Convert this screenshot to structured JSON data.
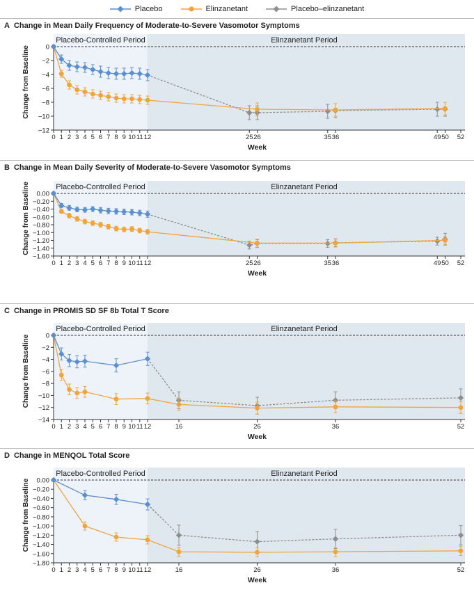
{
  "legend": {
    "items": [
      {
        "label": "Placebo",
        "color": "#5b8fcf"
      },
      {
        "label": "Elinzanetant",
        "color": "#efa43c"
      },
      {
        "label": "Placebo–elinzanetant",
        "color": "#8e8e8e"
      }
    ]
  },
  "chart_data": [
    {
      "panel": "A",
      "title": "Change in Mean Daily Frequency of Moderate-to-Severe Vasomotor Symptoms",
      "type": "line",
      "xlabel": "Week",
      "ylabel": "Change from Baseline",
      "period_labels": [
        "Placebo-Controlled Period",
        "Elinzanetant Period"
      ],
      "x_ticks": [
        0,
        1,
        2,
        3,
        4,
        5,
        6,
        7,
        8,
        9,
        10,
        11,
        12,
        25,
        26,
        35,
        36,
        49,
        50,
        52
      ],
      "x_tick_labels": [
        "0",
        "1",
        "2",
        "3",
        "4",
        "5",
        "6",
        "7",
        "8",
        "9",
        "10",
        "11",
        "12",
        "25",
        "26",
        "35",
        "36",
        "49",
        "50",
        "52"
      ],
      "y_ticks": [
        0,
        -2,
        -4,
        -6,
        -8,
        -10,
        -12
      ],
      "y_tick_labels": [
        "0",
        "−2",
        "−4",
        "−6",
        "−8",
        "−10",
        "−12"
      ],
      "ylim": [
        -12,
        0
      ],
      "xlim": [
        0,
        52
      ],
      "series": [
        {
          "name": "Placebo",
          "color": "#5b8fcf",
          "marker": "diamond",
          "x": [
            0,
            1,
            2,
            3,
            4,
            5,
            6,
            7,
            8,
            9,
            10,
            11,
            12
          ],
          "values": [
            0,
            -1.8,
            -2.7,
            -2.9,
            -3.0,
            -3.3,
            -3.6,
            -3.8,
            -3.9,
            -3.9,
            -3.8,
            -3.9,
            -4.1
          ],
          "err": [
            0,
            0.6,
            0.7,
            0.7,
            0.7,
            0.7,
            0.8,
            0.8,
            0.8,
            0.8,
            0.8,
            0.8,
            0.8
          ]
        },
        {
          "name": "Elinzanetant",
          "color": "#efa43c",
          "marker": "circle",
          "x": [
            0,
            1,
            2,
            3,
            4,
            5,
            6,
            7,
            8,
            9,
            10,
            11,
            12,
            26,
            36,
            50
          ],
          "values": [
            0,
            -3.9,
            -5.5,
            -6.2,
            -6.5,
            -6.8,
            -7.0,
            -7.2,
            -7.4,
            -7.5,
            -7.5,
            -7.6,
            -7.7,
            -9.0,
            -9.1,
            -8.9
          ],
          "err": [
            0,
            0.5,
            0.6,
            0.6,
            0.6,
            0.6,
            0.6,
            0.6,
            0.6,
            0.6,
            0.6,
            0.6,
            0.6,
            0.9,
            0.9,
            0.9
          ]
        },
        {
          "name": "Placebo–elinzanetant",
          "color": "#8e8e8e",
          "marker": "diamond",
          "x": [
            12,
            25,
            26,
            35,
            36,
            49,
            50
          ],
          "values": [
            -4.1,
            -9.5,
            -9.5,
            -9.3,
            -9.2,
            -9.0,
            -9.0
          ],
          "err": [
            0,
            1.0,
            1.0,
            1.0,
            1.0,
            1.0,
            1.0
          ]
        }
      ]
    },
    {
      "panel": "B",
      "title": "Change in Mean Daily Severity of Moderate-to-Severe Vasomotor Symptoms",
      "type": "line",
      "xlabel": "Week",
      "ylabel": "Change from Baseline",
      "period_labels": [
        "Placebo-Controlled Period",
        "Elinzanetant Period"
      ],
      "x_ticks": [
        0,
        1,
        2,
        3,
        4,
        5,
        6,
        7,
        8,
        9,
        10,
        11,
        12,
        25,
        26,
        35,
        36,
        49,
        50,
        52
      ],
      "x_tick_labels": [
        "0",
        "1",
        "2",
        "3",
        "4",
        "5",
        "6",
        "7",
        "8",
        "9",
        "10",
        "11",
        "12",
        "25",
        "26",
        "35",
        "36",
        "49",
        "50",
        "52"
      ],
      "y_ticks": [
        0,
        -0.2,
        -0.4,
        -0.6,
        -0.8,
        -1.0,
        -1.2,
        -1.4,
        -1.6
      ],
      "y_tick_labels": [
        "0.00",
        "−0.20",
        "−0.40",
        "−0.60",
        "−0.80",
        "−1.00",
        "−1.20",
        "−1.40",
        "−1.60"
      ],
      "ylim": [
        -1.6,
        0
      ],
      "xlim": [
        0,
        52
      ],
      "series": [
        {
          "name": "Placebo",
          "color": "#5b8fcf",
          "marker": "diamond",
          "x": [
            0,
            1,
            2,
            3,
            4,
            5,
            6,
            7,
            8,
            9,
            10,
            11,
            12
          ],
          "values": [
            0,
            -0.31,
            -0.37,
            -0.41,
            -0.42,
            -0.4,
            -0.43,
            -0.45,
            -0.46,
            -0.47,
            -0.48,
            -0.5,
            -0.53
          ],
          "err": [
            0,
            0.05,
            0.06,
            0.06,
            0.06,
            0.06,
            0.07,
            0.07,
            0.07,
            0.07,
            0.07,
            0.07,
            0.08
          ]
        },
        {
          "name": "Elinzanetant",
          "color": "#efa43c",
          "marker": "circle",
          "x": [
            0,
            1,
            2,
            3,
            4,
            5,
            6,
            7,
            8,
            9,
            10,
            11,
            12,
            26,
            36,
            50
          ],
          "values": [
            0,
            -0.46,
            -0.57,
            -0.65,
            -0.72,
            -0.76,
            -0.8,
            -0.85,
            -0.9,
            -0.92,
            -0.91,
            -0.95,
            -0.98,
            -1.27,
            -1.27,
            -1.2
          ],
          "err": [
            0,
            0.05,
            0.06,
            0.06,
            0.06,
            0.06,
            0.06,
            0.06,
            0.06,
            0.06,
            0.06,
            0.06,
            0.06,
            0.1,
            0.1,
            0.1
          ]
        },
        {
          "name": "Placebo–elinzanetant",
          "color": "#8e8e8e",
          "marker": "diamond",
          "x": [
            12,
            25,
            26,
            35,
            36,
            49,
            50
          ],
          "values": [
            -0.53,
            -1.32,
            -1.28,
            -1.28,
            -1.26,
            -1.22,
            -1.17
          ],
          "err": [
            0,
            0.1,
            0.1,
            0.1,
            0.1,
            0.1,
            0.15
          ]
        }
      ]
    },
    {
      "panel": "C",
      "title": "Change in PROMIS SD SF 8b Total T Score",
      "type": "line",
      "xlabel": "Week",
      "ylabel": "Change from Baseline",
      "period_labels": [
        "Placebo-Controlled Period",
        "Elinzanetant Period"
      ],
      "x_ticks": [
        0,
        1,
        2,
        3,
        4,
        5,
        6,
        7,
        8,
        9,
        10,
        11,
        12,
        16,
        26,
        36,
        52
      ],
      "x_tick_labels": [
        "0",
        "1",
        "2",
        "3",
        "4",
        "5",
        "6",
        "7",
        "8",
        "9",
        "10",
        "11",
        "12",
        "16",
        "26",
        "36",
        "52"
      ],
      "y_ticks": [
        0,
        -2,
        -4,
        -6,
        -8,
        -10,
        -12,
        -14
      ],
      "y_tick_labels": [
        "0",
        "−2",
        "−4",
        "−6",
        "−8",
        "−10",
        "−12",
        "−14"
      ],
      "ylim": [
        -14,
        0
      ],
      "xlim": [
        0,
        52
      ],
      "series": [
        {
          "name": "Placebo",
          "color": "#5b8fcf",
          "marker": "diamond",
          "x": [
            0,
            1,
            2,
            3,
            4,
            8,
            12
          ],
          "values": [
            0,
            -3.1,
            -4.2,
            -4.4,
            -4.3,
            -5.0,
            -3.9
          ],
          "err": [
            0,
            1.0,
            1.0,
            1.0,
            1.0,
            1.1,
            1.1
          ]
        },
        {
          "name": "Elinzanetant",
          "color": "#efa43c",
          "marker": "circle",
          "x": [
            0,
            1,
            2,
            3,
            4,
            8,
            12,
            16,
            26,
            36,
            52
          ],
          "values": [
            0,
            -6.6,
            -9.0,
            -9.6,
            -9.4,
            -10.6,
            -10.5,
            -11.5,
            -12.1,
            -11.9,
            -12.0
          ],
          "err": [
            0,
            0.9,
            0.9,
            0.9,
            0.9,
            0.9,
            0.9,
            1.0,
            1.0,
            1.0,
            1.0
          ]
        },
        {
          "name": "Placebo–elinzanetant",
          "color": "#8e8e8e",
          "marker": "diamond",
          "x": [
            12,
            16,
            26,
            36,
            52
          ],
          "values": [
            -3.9,
            -10.8,
            -11.7,
            -10.8,
            -10.4
          ],
          "err": [
            0,
            1.4,
            1.4,
            1.4,
            1.5
          ]
        }
      ]
    },
    {
      "panel": "D",
      "title": "Change in MENQOL Total Score",
      "type": "line",
      "xlabel": "Week",
      "ylabel": "Change from Baseline",
      "period_labels": [
        "Placebo-Controlled Period",
        "Elinzanetant Period"
      ],
      "x_ticks": [
        0,
        1,
        2,
        3,
        4,
        5,
        6,
        7,
        8,
        9,
        10,
        11,
        12,
        16,
        26,
        36,
        52
      ],
      "x_tick_labels": [
        "0",
        "1",
        "2",
        "3",
        "4",
        "5",
        "6",
        "7",
        "8",
        "9",
        "10",
        "11",
        "12",
        "16",
        "26",
        "36",
        "52"
      ],
      "y_ticks": [
        0,
        -0.2,
        -0.4,
        -0.6,
        -0.8,
        -1.0,
        -1.2,
        -1.4,
        -1.6,
        -1.8
      ],
      "y_tick_labels": [
        "0.00",
        "−0.20",
        "−0.40",
        "−0.60",
        "−0.80",
        "−1.00",
        "−1.20",
        "−1.40",
        "−1.60",
        "−1.80"
      ],
      "ylim": [
        -1.8,
        0
      ],
      "xlim": [
        0,
        52
      ],
      "series": [
        {
          "name": "Placebo",
          "color": "#5b8fcf",
          "marker": "diamond",
          "x": [
            0,
            4,
            8,
            12
          ],
          "values": [
            0,
            -0.33,
            -0.42,
            -0.53
          ],
          "err": [
            0,
            0.1,
            0.11,
            0.12
          ]
        },
        {
          "name": "Elinzanetant",
          "color": "#efa43c",
          "marker": "circle",
          "x": [
            0,
            4,
            8,
            12,
            16,
            26,
            36,
            52
          ],
          "values": [
            0,
            -1.0,
            -1.24,
            -1.3,
            -1.56,
            -1.57,
            -1.56,
            -1.54
          ],
          "err": [
            0,
            0.09,
            0.09,
            0.09,
            0.1,
            0.1,
            0.1,
            0.1
          ]
        },
        {
          "name": "Placebo–elinzanetant",
          "color": "#8e8e8e",
          "marker": "diamond",
          "x": [
            12,
            16,
            26,
            36,
            52
          ],
          "values": [
            -0.53,
            -1.2,
            -1.34,
            -1.28,
            -1.2
          ],
          "err": [
            0,
            0.22,
            0.22,
            0.21,
            0.21
          ]
        }
      ]
    }
  ]
}
